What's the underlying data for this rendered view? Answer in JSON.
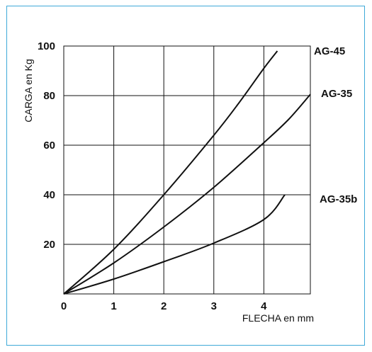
{
  "chart_data": {
    "type": "line",
    "title": "",
    "xlabel": "FLECHA en mm",
    "ylabel": "CARGA en Kg",
    "xlim": [
      0,
      4.93
    ],
    "ylim": [
      0,
      100
    ],
    "xticks": [
      "0",
      "1",
      "2",
      "3",
      "4"
    ],
    "yticks": [
      "20",
      "40",
      "60",
      "80",
      "100"
    ],
    "grid": true,
    "legend": "right-end labels",
    "series": [
      {
        "name": "AG-45",
        "x": [
          0,
          1,
          2,
          3,
          3.5,
          4.0,
          4.27
        ],
        "y": [
          0,
          18,
          40,
          64,
          77,
          91,
          98
        ]
      },
      {
        "name": "AG-35",
        "x": [
          0,
          1,
          2,
          3,
          4,
          4.5,
          4.93
        ],
        "y": [
          0,
          12.5,
          27,
          43,
          61,
          70.5,
          80.5
        ]
      },
      {
        "name": "AG-35b",
        "x": [
          0,
          1,
          2,
          3,
          4,
          4.42
        ],
        "y": [
          0,
          6,
          13,
          20.5,
          30,
          40
        ]
      }
    ],
    "line_color": "#111111",
    "frame_color": "#3fa9d8"
  }
}
